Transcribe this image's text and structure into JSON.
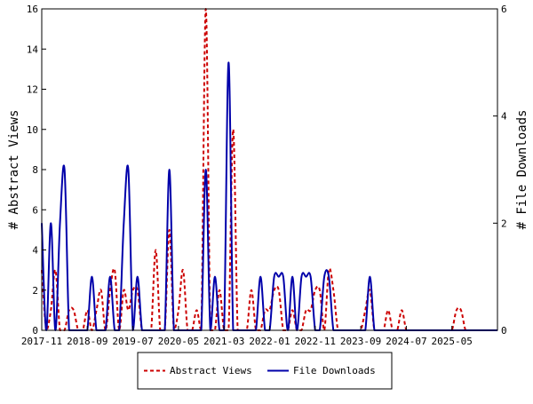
{
  "chart_data": {
    "type": "line",
    "x_tick_labels": [
      "2017-11",
      "2018-09",
      "2019-07",
      "2020-05",
      "2021-03",
      "2022-01",
      "2022-11",
      "2023-09",
      "2024-07",
      "2025-05"
    ],
    "y_left": {
      "label": "# Abstract Views",
      "ylim": [
        0,
        16
      ],
      "ticks": [
        "0",
        "2",
        "4",
        "6",
        "8",
        "10",
        "12",
        "14",
        "16"
      ]
    },
    "y_right": {
      "label": "# File Downloads",
      "ylim": [
        0,
        6
      ],
      "ticks": [
        "0",
        "2",
        "4",
        "6"
      ]
    },
    "grid": false,
    "legend": {
      "placement": "bottom-center"
    },
    "series": [
      {
        "name": "Abstract Views",
        "axis": "left",
        "color": "#cc0000",
        "dash": "dashed",
        "values": [
          3,
          0,
          1,
          3,
          0,
          0,
          1,
          1,
          0,
          0,
          1,
          0,
          1,
          2,
          0,
          2,
          3,
          0,
          2,
          1,
          2,
          2,
          0,
          0,
          0,
          4,
          0,
          0,
          5,
          0,
          1,
          3,
          0,
          0,
          1,
          0,
          16,
          0,
          0,
          2,
          0,
          0,
          10,
          0,
          0,
          0,
          2,
          0,
          0,
          1,
          1,
          2,
          2,
          0,
          0,
          1,
          0,
          0,
          1,
          1,
          2,
          2,
          0,
          3,
          2,
          0,
          0,
          0,
          0,
          0,
          0,
          1,
          2,
          0,
          0,
          0,
          1,
          0,
          0,
          1,
          0,
          0,
          0,
          0,
          0,
          0,
          0,
          0,
          0,
          0,
          0,
          1,
          1,
          0,
          0,
          0,
          0,
          0,
          0,
          0,
          0
        ]
      },
      {
        "name": "File Downloads",
        "axis": "right",
        "color": "#0000aa",
        "dash": "solid",
        "values": [
          2,
          0,
          2,
          0,
          2,
          3,
          0,
          0,
          0,
          0,
          0,
          1,
          0,
          0,
          0,
          1,
          0,
          0,
          2,
          3,
          0,
          1,
          0,
          0,
          0,
          0,
          0,
          0,
          3,
          0,
          0,
          0,
          0,
          0,
          0,
          0,
          3,
          0,
          1,
          0,
          0,
          5,
          0,
          0,
          0,
          0,
          0,
          0,
          1,
          0,
          0,
          1,
          1,
          1,
          0,
          1,
          0,
          1,
          1,
          1,
          0,
          0,
          1,
          1,
          0,
          0,
          0,
          0,
          0,
          0,
          0,
          0,
          1,
          0,
          0,
          0,
          0,
          0,
          0,
          0,
          0,
          0,
          0,
          0,
          0,
          0,
          0,
          0,
          0,
          0,
          0,
          0,
          0,
          0,
          0,
          0,
          0,
          0,
          0,
          0,
          0
        ]
      }
    ]
  }
}
